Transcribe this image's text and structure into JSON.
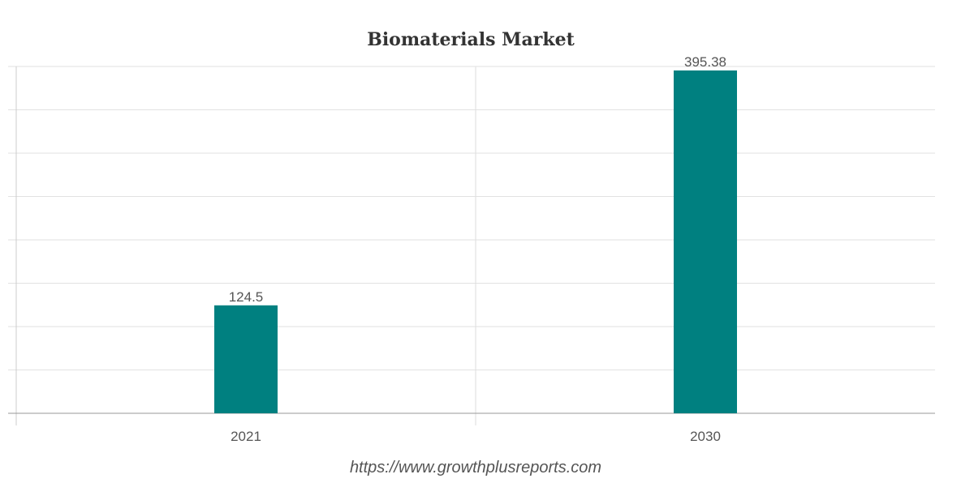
{
  "chart_data": {
    "type": "bar",
    "title": "Biomaterials Market",
    "categories": [
      "2021",
      "2030"
    ],
    "values": [
      124.5,
      395.38
    ],
    "data_labels": [
      "124.5",
      "395.38"
    ],
    "xlabel": "",
    "ylabel": "",
    "ylim": [
      0,
      400
    ],
    "grid": true,
    "legend": "none",
    "bar_color": "#008080"
  },
  "footer": {
    "source_url": "https://www.growthplusreports.com"
  }
}
